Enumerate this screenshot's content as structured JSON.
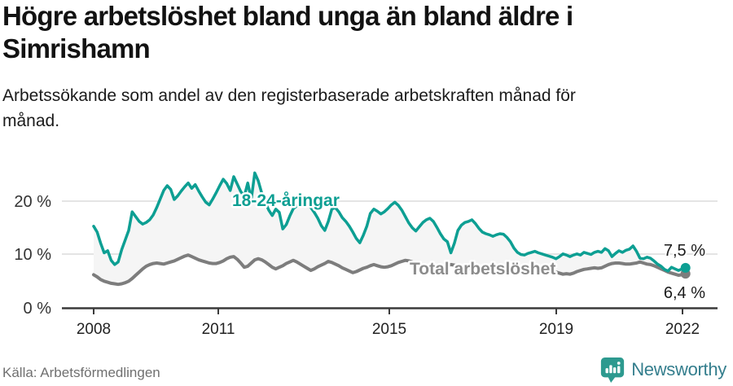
{
  "header": {
    "title_lines": [
      "Högre arbetslöshet bland unga än bland äldre i",
      "Simrishamn"
    ],
    "subtitle_lines": [
      "Arbetssökande som andel av den registerbaserade arbetskraften månad för",
      "månad."
    ]
  },
  "footer": {
    "source": "Källa: Arbetsförmedlingen",
    "brand": "Newsworthy"
  },
  "colors": {
    "youth": "#0d9f93",
    "total": "#7d7d7d",
    "total_label": "#8c8c8c",
    "band": "#f5f5f5",
    "grid": "#dcdcdc",
    "axis": "#3a3a3a",
    "value_label": "#1a1a1a",
    "logo_icon": "#2d9a8f",
    "logo_text": "#347e8d"
  },
  "chart_data": {
    "type": "line",
    "title": "Högre arbetslöshet bland unga än bland äldre i Simrishamn",
    "subtitle": "Arbetssökande som andel av den registerbaserade arbetskraften månad för månad.",
    "x_unit": "month",
    "x_start": "2008-01",
    "x_end": "2022-02",
    "ylim": [
      0,
      27
    ],
    "grid": "horizontal",
    "yticks": [
      "0 %",
      "10 %",
      "20 %"
    ],
    "xticks": [
      "2008",
      "2011",
      "2015",
      "2019",
      "2022"
    ],
    "series": [
      {
        "name": "18-24-åringar",
        "color": "#0d9f93",
        "end_label": "7,5 %",
        "end_value": 7.5,
        "values": [
          15.3,
          14.2,
          12.1,
          10.3,
          10.7,
          8.9,
          8.1,
          8.6,
          10.9,
          12.7,
          14.5,
          18.0,
          17.1,
          16.2,
          15.7,
          16.0,
          16.5,
          17.4,
          18.8,
          20.4,
          22.0,
          22.9,
          22.2,
          20.3,
          21.0,
          21.9,
          22.7,
          23.4,
          22.4,
          23.1,
          21.9,
          20.8,
          19.8,
          19.3,
          20.4,
          21.6,
          22.9,
          24.1,
          23.3,
          22.0,
          24.6,
          23.2,
          21.8,
          20.9,
          23.4,
          20.3,
          25.3,
          23.8,
          21.5,
          19.8,
          18.3,
          17.3,
          18.5,
          17.9,
          14.8,
          15.6,
          17.2,
          18.6,
          19.1,
          19.2,
          19.0,
          19.3,
          18.8,
          17.9,
          16.8,
          15.4,
          14.5,
          16.2,
          18.5,
          18.8,
          18.0,
          16.9,
          16.2,
          15.3,
          14.2,
          13.0,
          12.2,
          13.6,
          15.3,
          17.7,
          18.5,
          18.1,
          17.6,
          18.0,
          18.6,
          19.3,
          19.8,
          19.2,
          18.3,
          17.1,
          15.9,
          15.0,
          14.4,
          15.2,
          16.0,
          16.5,
          16.8,
          16.2,
          15.1,
          13.9,
          12.9,
          12.4,
          10.3,
          12.1,
          14.5,
          15.5,
          16.0,
          16.2,
          16.5,
          15.8,
          14.9,
          14.2,
          13.9,
          13.7,
          13.4,
          13.7,
          13.9,
          13.8,
          13.2,
          12.4,
          11.2,
          10.4,
          10.0,
          9.9,
          10.2,
          10.4,
          10.6,
          10.3,
          10.1,
          9.9,
          9.7,
          9.5,
          9.2,
          9.6,
          10.1,
          9.9,
          9.6,
          9.9,
          10.1,
          9.9,
          10.4,
          10.2,
          10.0,
          10.4,
          10.6,
          10.4,
          11.1,
          10.7,
          9.6,
          10.2,
          10.7,
          10.4,
          10.8,
          11.0,
          11.6,
          10.6,
          9.3,
          9.2,
          9.5,
          9.3,
          8.8,
          8.2,
          7.8,
          7.2,
          6.9,
          7.6,
          7.3,
          7.0,
          7.3,
          7.5
        ]
      },
      {
        "name": "Total arbetslöshet",
        "color": "#7d7d7d",
        "end_label": "6,4 %",
        "end_value": 6.4,
        "values": [
          6.2,
          5.8,
          5.3,
          5.0,
          4.8,
          4.6,
          4.5,
          4.4,
          4.5,
          4.7,
          5.0,
          5.5,
          6.1,
          6.7,
          7.3,
          7.8,
          8.1,
          8.3,
          8.4,
          8.3,
          8.2,
          8.4,
          8.6,
          8.8,
          9.1,
          9.4,
          9.7,
          9.9,
          9.6,
          9.3,
          9.0,
          8.8,
          8.6,
          8.4,
          8.3,
          8.3,
          8.5,
          8.8,
          9.2,
          9.5,
          9.6,
          9.1,
          8.4,
          7.6,
          7.8,
          8.4,
          9.0,
          9.2,
          9.0,
          8.6,
          8.1,
          7.6,
          7.3,
          7.6,
          7.9,
          8.3,
          8.6,
          8.9,
          8.6,
          8.2,
          7.8,
          7.4,
          7.0,
          7.3,
          7.7,
          8.0,
          8.3,
          8.7,
          8.5,
          8.2,
          7.9,
          7.5,
          7.2,
          6.9,
          6.6,
          6.8,
          7.1,
          7.4,
          7.6,
          7.9,
          8.1,
          7.9,
          7.7,
          7.6,
          7.7,
          7.9,
          8.2,
          8.5,
          8.7,
          8.9,
          8.8,
          8.6,
          8.3,
          8.0,
          7.8,
          7.7,
          7.6,
          7.5,
          7.4,
          7.5,
          7.7,
          7.9,
          8.1,
          8.0,
          7.8,
          7.6,
          7.5,
          7.4,
          7.3,
          7.2,
          7.1,
          7.2,
          7.4,
          7.6,
          7.8,
          7.7,
          7.5,
          7.3,
          7.2,
          7.1,
          7.0,
          6.9,
          6.8,
          6.7,
          6.6,
          6.6,
          6.7,
          6.8,
          6.7,
          6.6,
          6.5,
          6.6,
          6.7,
          6.5,
          6.3,
          6.4,
          6.3,
          6.5,
          6.8,
          7.0,
          7.2,
          7.3,
          7.4,
          7.5,
          7.4,
          7.5,
          7.8,
          8.1,
          8.3,
          8.4,
          8.4,
          8.3,
          8.2,
          8.2,
          8.3,
          8.4,
          8.6,
          8.4,
          8.2,
          8.1,
          7.9,
          7.6,
          7.3,
          7.0,
          6.7,
          6.5,
          6.3,
          6.1,
          6.2,
          6.4
        ]
      }
    ]
  }
}
